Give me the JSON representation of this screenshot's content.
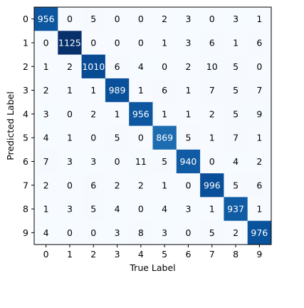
{
  "chart_data": {
    "type": "heatmap",
    "title": "",
    "xlabel": "True Label",
    "ylabel": "Predicted Label",
    "x_categories": [
      "0",
      "1",
      "2",
      "3",
      "4",
      "5",
      "6",
      "7",
      "8",
      "9"
    ],
    "y_categories": [
      "0",
      "1",
      "2",
      "3",
      "4",
      "5",
      "6",
      "7",
      "8",
      "9"
    ],
    "colormap": "Blues",
    "color_range": [
      0,
      1125
    ],
    "grid": false,
    "values": [
      [
        956,
        0,
        5,
        0,
        0,
        2,
        3,
        0,
        3,
        1
      ],
      [
        0,
        1125,
        0,
        0,
        0,
        1,
        3,
        6,
        1,
        6
      ],
      [
        1,
        2,
        1010,
        6,
        4,
        0,
        2,
        10,
        5,
        0
      ],
      [
        2,
        1,
        1,
        989,
        1,
        6,
        1,
        7,
        5,
        7
      ],
      [
        3,
        0,
        2,
        1,
        956,
        1,
        1,
        2,
        5,
        9
      ],
      [
        4,
        1,
        0,
        5,
        0,
        869,
        5,
        1,
        7,
        1
      ],
      [
        7,
        3,
        3,
        0,
        11,
        5,
        940,
        0,
        4,
        2
      ],
      [
        2,
        0,
        6,
        2,
        2,
        1,
        0,
        996,
        5,
        6
      ],
      [
        1,
        3,
        5,
        4,
        0,
        4,
        3,
        1,
        937,
        1
      ],
      [
        4,
        0,
        0,
        3,
        8,
        3,
        0,
        5,
        2,
        976
      ]
    ]
  }
}
